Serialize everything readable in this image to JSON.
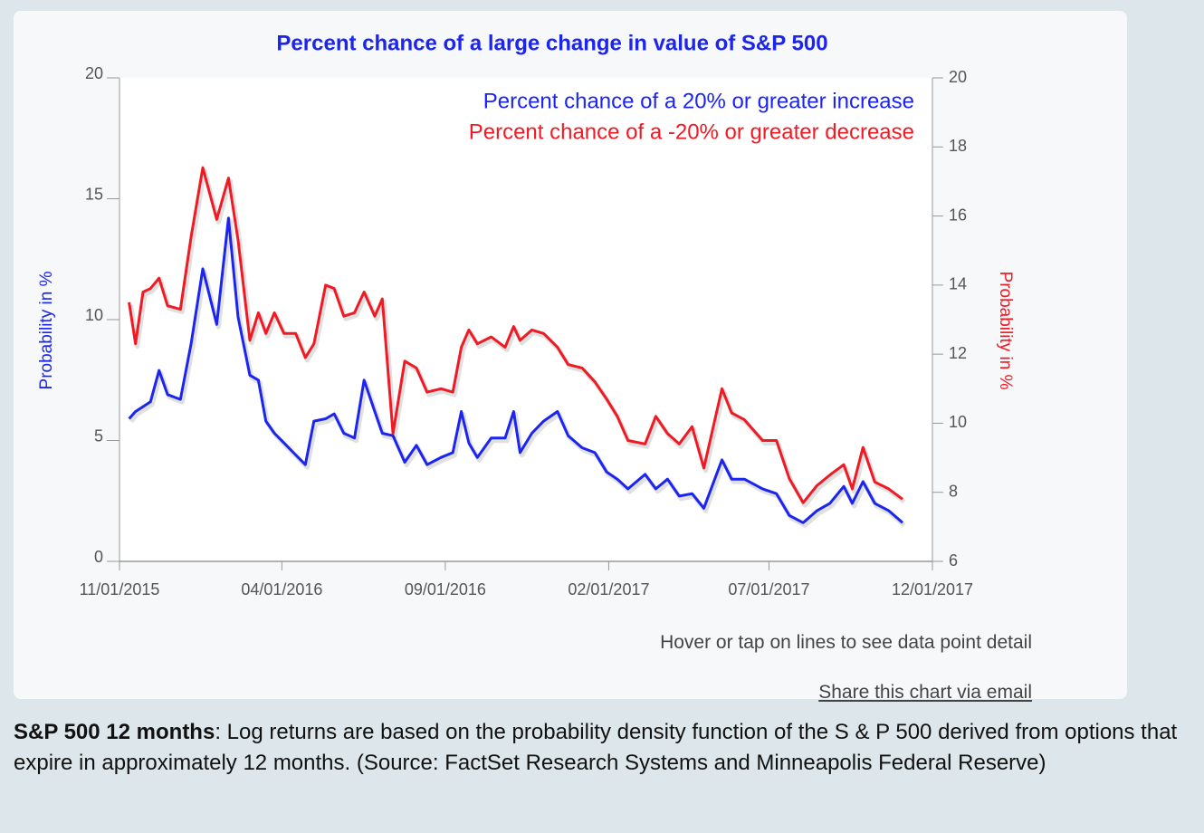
{
  "chart_data": {
    "type": "line",
    "title": "Percent chance of a large change in value of S&P 500",
    "y_label": "Probability in %",
    "y2_label": "Probability in %",
    "xlim": [
      "11/01/2015",
      "12/01/2017"
    ],
    "xticks": [
      "11/01/2015",
      "04/01/2016",
      "09/01/2016",
      "02/01/2017",
      "07/01/2017",
      "12/01/2017"
    ],
    "ylim": [
      0,
      20
    ],
    "yticks": [
      0,
      5,
      10,
      15,
      20
    ],
    "y2lim": [
      6,
      20
    ],
    "y2ticks": [
      6,
      8,
      10,
      12,
      14,
      16,
      18,
      20
    ],
    "legend": "top-right",
    "x": [
      "11/10/2015",
      "11/16/2015",
      "11/23/2015",
      "11/30/2015",
      "12/08/2015",
      "12/16/2015",
      "12/28/2015",
      "01/07/2016",
      "01/18/2016",
      "01/31/2016",
      "02/11/2016",
      "02/20/2016",
      "03/02/2016",
      "03/10/2016",
      "03/17/2016",
      "03/25/2016",
      "04/03/2016",
      "04/14/2016",
      "04/23/2016",
      "05/01/2016",
      "05/12/2016",
      "05/20/2016",
      "05/29/2016",
      "06/08/2016",
      "06/17/2016",
      "06/27/2016",
      "07/04/2016",
      "07/14/2016",
      "07/25/2016",
      "08/05/2016",
      "08/15/2016",
      "08/28/2016",
      "09/08/2016",
      "09/16/2016",
      "09/23/2016",
      "10/01/2016",
      "10/14/2016",
      "10/27/2016",
      "11/04/2016",
      "11/10/2016",
      "11/21/2016",
      "12/02/2016",
      "12/15/2016",
      "12/25/2016",
      "01/07/2017",
      "01/19/2017",
      "01/30/2017",
      "02/09/2017",
      "02/19/2017",
      "03/07/2017",
      "03/17/2017",
      "03/28/2017",
      "04/08/2017",
      "04/20/2017",
      "05/01/2017",
      "05/18/2017",
      "05/27/2017",
      "06/08/2017",
      "06/25/2017",
      "07/08/2017",
      "07/20/2017",
      "08/02/2017",
      "08/15/2017",
      "08/27/2017",
      "09/09/2017",
      "09/17/2017",
      "09/27/2017",
      "10/08/2017",
      "10/21/2017",
      "11/03/2017"
    ],
    "series": [
      {
        "name": "Percent chance of a 20% or greater increase",
        "color": "#1c24f0",
        "axis": "y",
        "values": [
          5.9,
          6.2,
          6.4,
          6.6,
          7.9,
          6.9,
          6.7,
          9.0,
          12.1,
          9.8,
          14.2,
          10.1,
          7.7,
          7.5,
          5.8,
          5.3,
          4.9,
          4.4,
          4.0,
          5.8,
          5.9,
          6.1,
          5.3,
          5.1,
          7.5,
          6.2,
          5.3,
          5.2,
          4.1,
          4.8,
          4.0,
          4.3,
          4.5,
          6.2,
          4.9,
          4.3,
          5.1,
          5.1,
          6.2,
          4.5,
          5.3,
          5.8,
          6.2,
          5.2,
          4.7,
          4.5,
          3.7,
          3.4,
          3.0,
          3.6,
          3.0,
          3.4,
          2.7,
          2.8,
          2.2,
          4.2,
          3.4,
          3.4,
          3.0,
          2.8,
          1.9,
          1.6,
          2.1,
          2.4,
          3.1,
          2.4,
          3.3,
          2.4,
          2.1,
          1.6
        ]
      },
      {
        "name": "Percent chance of a -20% or greater decrease",
        "color": "#ef1a24",
        "axis": "y2",
        "values": [
          13.5,
          12.3,
          13.8,
          13.9,
          14.2,
          13.4,
          13.3,
          15.4,
          17.4,
          15.9,
          17.1,
          15.3,
          12.4,
          13.2,
          12.6,
          13.2,
          12.6,
          12.6,
          11.9,
          12.3,
          14.0,
          13.9,
          13.1,
          13.2,
          13.8,
          13.1,
          13.6,
          9.7,
          11.8,
          11.6,
          10.9,
          11.0,
          10.9,
          12.2,
          12.7,
          12.3,
          12.5,
          12.2,
          12.8,
          12.4,
          12.7,
          12.6,
          12.2,
          11.7,
          11.6,
          11.2,
          10.7,
          10.2,
          9.5,
          9.4,
          10.2,
          9.7,
          9.4,
          9.9,
          8.7,
          11.0,
          10.3,
          10.1,
          9.5,
          9.5,
          8.4,
          7.7,
          8.2,
          8.5,
          8.8,
          8.1,
          9.3,
          8.3,
          8.1,
          7.8
        ]
      }
    ]
  },
  "hint": "Hover or tap on lines to see data point detail",
  "share": "Share this chart via email",
  "caption": {
    "bold": "S&P 500 12 months",
    "text": ": Log returns are based on the probability density function of the S & P 500 derived from options that expire in approximately 12 months. (Source: FactSet Research Systems and Minneapolis Federal Reserve)"
  }
}
